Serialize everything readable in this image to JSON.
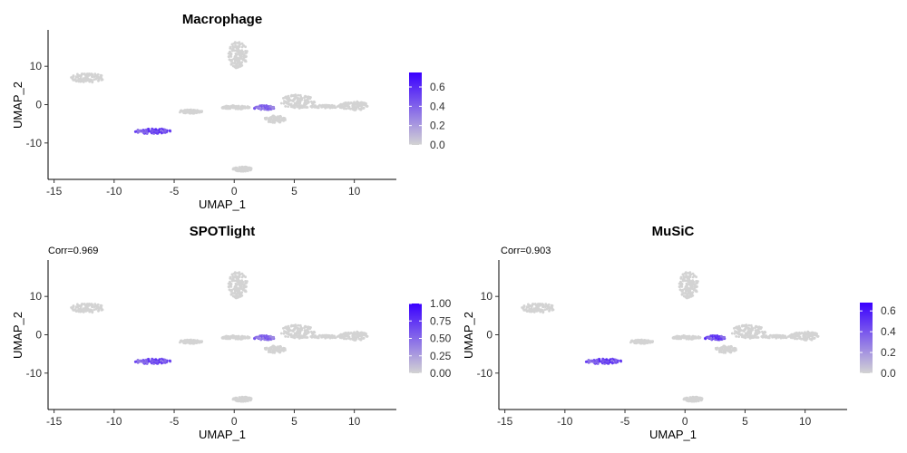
{
  "chart_data": [
    {
      "type": "scatter",
      "title": "Macrophage",
      "subtitle": "",
      "xlabel": "UMAP_1",
      "ylabel": "UMAP_2",
      "xlim": [
        -15.5,
        13.5
      ],
      "ylim": [
        -19.5,
        19.5
      ],
      "xticks": [
        -15,
        -10,
        -5,
        0,
        5,
        10
      ],
      "yticks": [
        -10,
        0,
        10
      ],
      "legend": {
        "placement": "right",
        "ticks": [
          "0.0",
          "0.2",
          "0.4",
          "0.6"
        ],
        "values": [
          0,
          0.2,
          0.4,
          0.6
        ],
        "max": 0.75
      },
      "colors": {
        "low": "#d3d3d3",
        "high": "#3a00ff"
      },
      "clusters": [
        {
          "cx": -12.2,
          "cy": 7.0,
          "rx": 1.4,
          "ry": 1.2,
          "value": 0.0
        },
        {
          "cx": 0.3,
          "cy": 13.0,
          "rx": 0.8,
          "ry": 3.5,
          "value": 0.0
        },
        {
          "cx": -6.8,
          "cy": -6.9,
          "rx": 1.5,
          "ry": 0.7,
          "value": 0.55
        },
        {
          "cx": -3.6,
          "cy": -1.8,
          "rx": 1.0,
          "ry": 0.5,
          "value": 0.0
        },
        {
          "cx": 0.1,
          "cy": -0.7,
          "rx": 1.2,
          "ry": 0.5,
          "value": 0.0
        },
        {
          "cx": 2.5,
          "cy": -0.8,
          "rx": 0.9,
          "ry": 0.6,
          "value": 0.45
        },
        {
          "cx": 5.3,
          "cy": 0.8,
          "rx": 1.5,
          "ry": 1.8,
          "value": 0.0
        },
        {
          "cx": 3.4,
          "cy": -3.8,
          "rx": 0.9,
          "ry": 0.9,
          "value": 0.0
        },
        {
          "cx": 7.8,
          "cy": -0.5,
          "rx": 1.5,
          "ry": 0.4,
          "value": 0.0
        },
        {
          "cx": 10.0,
          "cy": -0.3,
          "rx": 1.2,
          "ry": 1.2,
          "value": 0.0
        },
        {
          "cx": 0.7,
          "cy": -16.8,
          "rx": 0.8,
          "ry": 0.6,
          "value": 0.0
        }
      ]
    },
    {
      "type": "scatter",
      "title": "SPOTlight",
      "subtitle": "Corr=0.969",
      "xlabel": "UMAP_1",
      "ylabel": "UMAP_2",
      "xlim": [
        -15.5,
        13.5
      ],
      "ylim": [
        -19.5,
        19.5
      ],
      "xticks": [
        -15,
        -10,
        -5,
        0,
        5,
        10
      ],
      "yticks": [
        -10,
        0,
        10
      ],
      "legend": {
        "placement": "right",
        "ticks": [
          "0.00",
          "0.25",
          "0.50",
          "0.75",
          "1.00"
        ],
        "values": [
          0,
          0.25,
          0.5,
          0.75,
          1.0
        ],
        "max": 1.0
      },
      "colors": {
        "low": "#d3d3d3",
        "high": "#3a00ff"
      },
      "clusters": [
        {
          "cx": -12.2,
          "cy": 7.0,
          "rx": 1.4,
          "ry": 1.2,
          "value": 0.0
        },
        {
          "cx": 0.3,
          "cy": 13.0,
          "rx": 0.8,
          "ry": 3.5,
          "value": 0.0
        },
        {
          "cx": -6.8,
          "cy": -6.9,
          "rx": 1.5,
          "ry": 0.7,
          "value": 0.7
        },
        {
          "cx": -3.6,
          "cy": -1.8,
          "rx": 1.0,
          "ry": 0.5,
          "value": 0.0
        },
        {
          "cx": 0.1,
          "cy": -0.7,
          "rx": 1.2,
          "ry": 0.5,
          "value": 0.0
        },
        {
          "cx": 2.5,
          "cy": -0.8,
          "rx": 0.9,
          "ry": 0.6,
          "value": 0.6
        },
        {
          "cx": 5.3,
          "cy": 0.8,
          "rx": 1.5,
          "ry": 1.8,
          "value": 0.0
        },
        {
          "cx": 3.4,
          "cy": -3.8,
          "rx": 0.9,
          "ry": 0.9,
          "value": 0.0
        },
        {
          "cx": 7.8,
          "cy": -0.5,
          "rx": 1.5,
          "ry": 0.4,
          "value": 0.0
        },
        {
          "cx": 10.0,
          "cy": -0.3,
          "rx": 1.2,
          "ry": 1.2,
          "value": 0.0
        },
        {
          "cx": 0.7,
          "cy": -16.8,
          "rx": 0.8,
          "ry": 0.6,
          "value": 0.0
        }
      ]
    },
    {
      "type": "scatter",
      "title": "MuSiC",
      "subtitle": "Corr=0.903",
      "xlabel": "UMAP_1",
      "ylabel": "UMAP_2",
      "xlim": [
        -15.5,
        13.5
      ],
      "ylim": [
        -19.5,
        19.5
      ],
      "xticks": [
        -15,
        -10,
        -5,
        0,
        5,
        10
      ],
      "yticks": [
        -10,
        0,
        10
      ],
      "legend": {
        "placement": "right",
        "ticks": [
          "0.0",
          "0.2",
          "0.4",
          "0.6"
        ],
        "values": [
          0,
          0.2,
          0.4,
          0.6
        ],
        "max": 0.68
      },
      "colors": {
        "low": "#d3d3d3",
        "high": "#3a00ff"
      },
      "clusters": [
        {
          "cx": -12.2,
          "cy": 7.0,
          "rx": 1.4,
          "ry": 1.2,
          "value": 0.0
        },
        {
          "cx": 0.3,
          "cy": 13.0,
          "rx": 0.8,
          "ry": 3.5,
          "value": 0.0
        },
        {
          "cx": -6.8,
          "cy": -6.9,
          "rx": 1.5,
          "ry": 0.7,
          "value": 0.5
        },
        {
          "cx": -3.6,
          "cy": -1.8,
          "rx": 1.0,
          "ry": 0.5,
          "value": 0.0
        },
        {
          "cx": 0.1,
          "cy": -0.7,
          "rx": 1.2,
          "ry": 0.5,
          "value": 0.0
        },
        {
          "cx": 2.5,
          "cy": -0.8,
          "rx": 0.9,
          "ry": 0.6,
          "value": 0.55
        },
        {
          "cx": 5.3,
          "cy": 0.8,
          "rx": 1.5,
          "ry": 1.8,
          "value": 0.0
        },
        {
          "cx": 3.4,
          "cy": -3.8,
          "rx": 0.9,
          "ry": 0.9,
          "value": 0.0
        },
        {
          "cx": 7.8,
          "cy": -0.5,
          "rx": 1.5,
          "ry": 0.4,
          "value": 0.0
        },
        {
          "cx": 10.0,
          "cy": -0.3,
          "rx": 1.2,
          "ry": 1.2,
          "value": 0.0
        },
        {
          "cx": 0.7,
          "cy": -16.8,
          "rx": 0.8,
          "ry": 0.6,
          "value": 0.0
        }
      ]
    }
  ]
}
